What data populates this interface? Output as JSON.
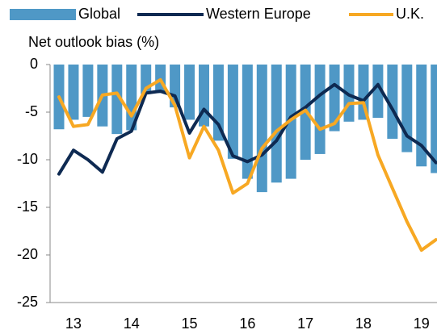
{
  "chart_data": {
    "type": "bar_line",
    "y_label": "Net outlook bias (%)",
    "categories": [
      null,
      "13",
      null,
      null,
      null,
      "14",
      null,
      null,
      null,
      "15",
      null,
      null,
      null,
      "16",
      null,
      null,
      null,
      "17",
      null,
      null,
      null,
      "18",
      null,
      null,
      null,
      "19",
      null
    ],
    "series": [
      {
        "name": "Global",
        "type": "bar",
        "color": "#4f98c6",
        "values": [
          -6.8,
          -5.8,
          -5.5,
          -6.5,
          -7.3,
          -6.9,
          -3.1,
          -3.0,
          -4.5,
          -5.8,
          -6.5,
          -8.0,
          -9.9,
          -12.0,
          -13.4,
          -12.4,
          -12.0,
          -10.0,
          -9.4,
          -7.0,
          -6.0,
          -5.8,
          -5.6,
          -7.8,
          -9.2,
          -10.7,
          -11.4
        ]
      },
      {
        "name": "Western Europe",
        "type": "line",
        "color": "#0e2a52",
        "values": [
          -11.5,
          -9.0,
          -10.0,
          -11.3,
          -7.8,
          -7.0,
          -3.0,
          -2.8,
          -3.3,
          -7.2,
          -4.7,
          -6.3,
          -9.6,
          -10.2,
          -9.5,
          -8.0,
          -5.5,
          -4.5,
          -3.2,
          -2.1,
          -3.2,
          -3.8,
          -2.1,
          -4.7,
          -7.5,
          -8.5,
          -10.3
        ]
      },
      {
        "name": "U.K.",
        "type": "line",
        "color": "#f7a823",
        "values": [
          -3.4,
          -6.5,
          -6.3,
          -3.2,
          -3.0,
          -5.4,
          -2.5,
          -1.6,
          -4.3,
          -9.8,
          -6.5,
          -9.0,
          -13.5,
          -12.5,
          -8.8,
          -7.0,
          -5.8,
          -4.8,
          -6.8,
          -6.2,
          -4.1,
          -4.0,
          -9.5,
          -13.0,
          -16.5,
          -19.5,
          -18.4
        ]
      }
    ],
    "ylim": [
      -25,
      0
    ],
    "yticks": [
      -25,
      -20,
      -15,
      -10,
      -5,
      0
    ]
  }
}
